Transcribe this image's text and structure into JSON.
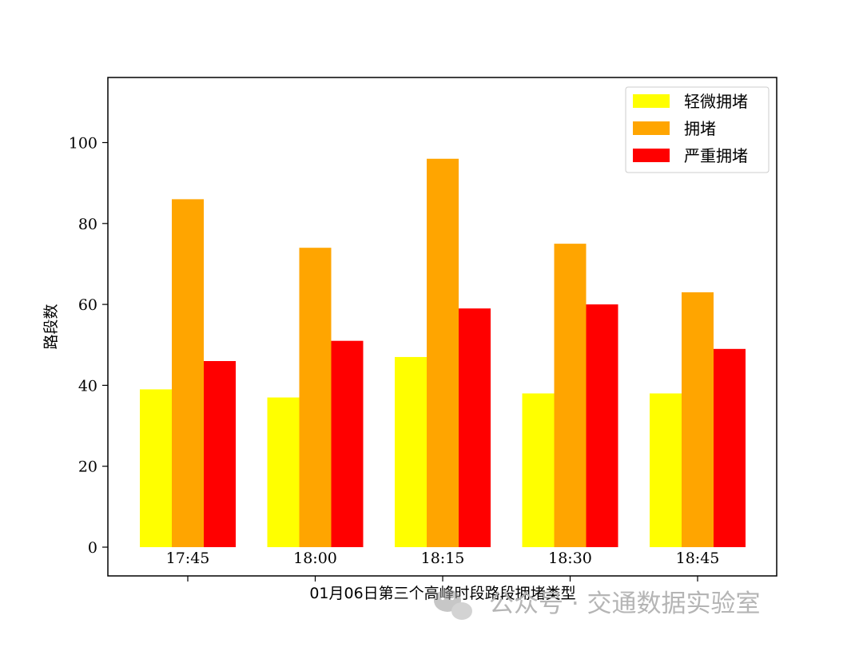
{
  "chart_data": {
    "type": "bar",
    "categories": [
      "17:45",
      "18:00",
      "18:15",
      "18:30",
      "18:45"
    ],
    "series": [
      {
        "name": "轻微拥堵",
        "values": [
          39,
          37,
          47,
          38,
          38
        ],
        "color": "#ffff00"
      },
      {
        "name": "拥堵",
        "values": [
          86,
          74,
          96,
          75,
          63
        ],
        "color": "#ffa500"
      },
      {
        "name": "严重拥堵",
        "values": [
          46,
          51,
          59,
          60,
          49
        ],
        "color": "#ff0000"
      }
    ],
    "xlabel": "01月06日第三个高峰时段路段拥堵类型",
    "ylabel": "路段数",
    "ylim": [
      0,
      115
    ],
    "yticks": [
      0,
      20,
      40,
      60,
      80,
      100
    ],
    "grid": false,
    "legend_position": "top-right"
  },
  "watermark": {
    "text": "公众号 · 交通数据实验室",
    "icon": "wechat-icon"
  }
}
